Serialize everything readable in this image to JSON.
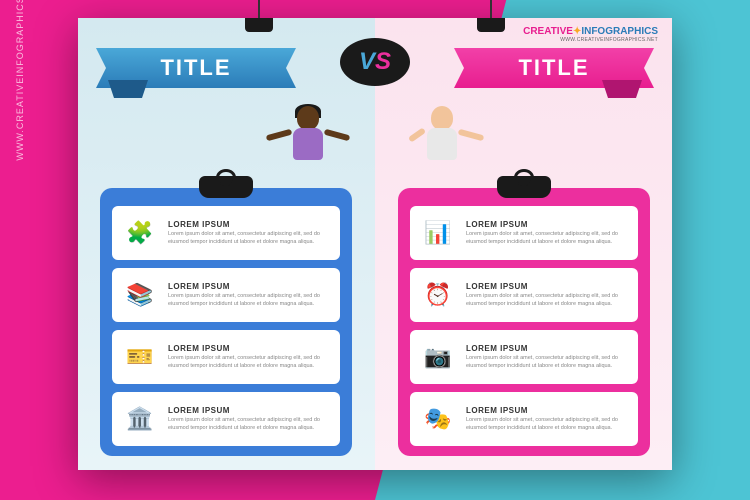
{
  "watermark": "WWW.CREATIVEINFOGRAPHICS.NET",
  "brand": {
    "word1": "CREATIVE",
    "word2": "INFOGRAPHICS",
    "url": "WWW.CREATIVEINFOGRAPHICS.NET",
    "color1": "#e81e8f",
    "color2": "#2b7cb8"
  },
  "vs": {
    "v": "V",
    "s": "S",
    "v_color": "#4aa8d8",
    "s_color": "#ec2f9e"
  },
  "left": {
    "title": "TITLE",
    "ribbon_color": "#4aa8d8",
    "board_color": "#3b7dd8",
    "items": [
      {
        "icon": "🧩",
        "title": "LOREM IPSUM",
        "body": "Lorem ipsum dolor sit amet, consectetur adipiscing elit, sed do eiusmod tempor incididunt ut labore et dolore magna aliqua."
      },
      {
        "icon": "📚",
        "title": "LOREM IPSUM",
        "body": "Lorem ipsum dolor sit amet, consectetur adipiscing elit, sed do eiusmod tempor incididunt ut labore et dolore magna aliqua."
      },
      {
        "icon": "🎫",
        "title": "LOREM IPSUM",
        "body": "Lorem ipsum dolor sit amet, consectetur adipiscing elit, sed do eiusmod tempor incididunt ut labore et dolore magna aliqua."
      },
      {
        "icon": "🏛️",
        "title": "LOREM IPSUM",
        "body": "Lorem ipsum dolor sit amet, consectetur adipiscing elit, sed do eiusmod tempor incididunt ut labore et dolore magna aliqua."
      }
    ]
  },
  "right": {
    "title": "TITLE",
    "ribbon_color": "#ec2f9e",
    "board_color": "#ec2f9e",
    "items": [
      {
        "icon": "📊",
        "title": "LOREM IPSUM",
        "body": "Lorem ipsum dolor sit amet, consectetur adipiscing elit, sed do eiusmod tempor incididunt ut labore et dolore magna aliqua."
      },
      {
        "icon": "⏰",
        "title": "LOREM IPSUM",
        "body": "Lorem ipsum dolor sit amet, consectetur adipiscing elit, sed do eiusmod tempor incididunt ut labore et dolore magna aliqua."
      },
      {
        "icon": "📷",
        "title": "LOREM IPSUM",
        "body": "Lorem ipsum dolor sit amet, consectetur adipiscing elit, sed do eiusmod tempor incididunt ut labore et dolore magna aliqua."
      },
      {
        "icon": "🎭",
        "title": "LOREM IPSUM",
        "body": "Lorem ipsum dolor sit amet, consectetur adipiscing elit, sed do eiusmod tempor incididunt ut labore et dolore magna aliqua."
      }
    ]
  }
}
